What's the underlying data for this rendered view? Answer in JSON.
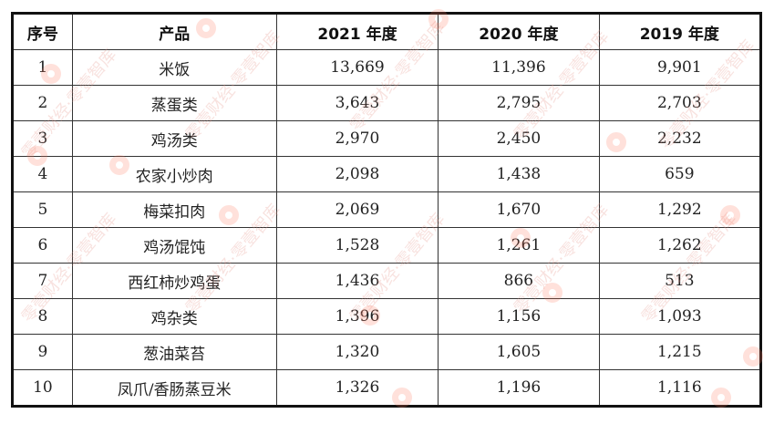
{
  "table": {
    "headers": [
      "序号",
      "产品",
      "2021 年度",
      "2020 年度",
      "2019 年度"
    ],
    "rows": [
      [
        "1",
        "米饭",
        "13,669",
        "11,396",
        "9,901"
      ],
      [
        "2",
        "蒸蛋类",
        "3,643",
        "2,795",
        "2,703"
      ],
      [
        "3",
        "鸡汤类",
        "2,970",
        "2,450",
        "2,232"
      ],
      [
        "4",
        "农家小炒肉",
        "2,098",
        "1,438",
        "659"
      ],
      [
        "5",
        "梅菜扣肉",
        "2,069",
        "1,670",
        "1,292"
      ],
      [
        "6",
        "鸡汤馄饨",
        "1,528",
        "1,261",
        "1,262"
      ],
      [
        "7",
        "西红柿炒鸡蛋",
        "1,436",
        "866",
        "513"
      ],
      [
        "8",
        "鸡杂类",
        "1,396",
        "1,156",
        "1,093"
      ],
      [
        "9",
        "葱油菜苔",
        "1,320",
        "1,605",
        "1,215"
      ],
      [
        "10",
        "凤爪/香肠蒸豆米",
        "1,326",
        "1,196",
        "1,116"
      ]
    ]
  },
  "watermark": "零壹财经·零壹智库"
}
